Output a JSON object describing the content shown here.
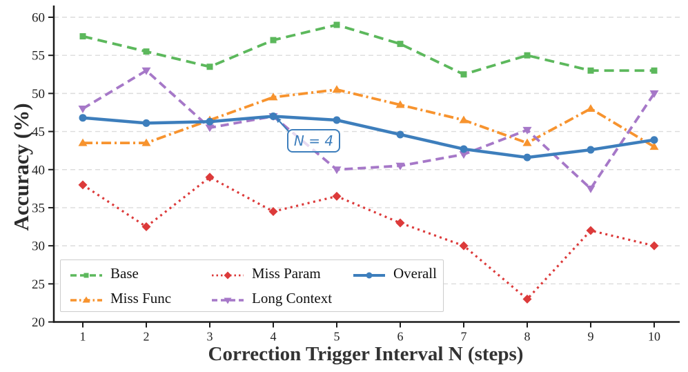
{
  "chart_data": {
    "type": "line",
    "title": "",
    "xlabel": "Correction Trigger Interval N (steps)",
    "ylabel": "Accuracy (%)",
    "x": [
      1,
      2,
      3,
      4,
      5,
      6,
      7,
      8,
      9,
      10
    ],
    "yticks": [
      20,
      25,
      30,
      35,
      40,
      45,
      50,
      55,
      60
    ],
    "ylim": [
      20,
      61.5
    ],
    "grid": "horizontal-dashed",
    "legend_position": "lower-left",
    "series": [
      {
        "name": "Base",
        "color": "#5cb85c",
        "dash": "dashed",
        "marker": "square",
        "values": [
          57.5,
          55.5,
          53.5,
          57.0,
          59.0,
          56.5,
          52.5,
          55.0,
          53.0,
          53.0
        ]
      },
      {
        "name": "Miss Func",
        "color": "#f7932e",
        "dash": "dashdot",
        "marker": "triangle-up",
        "values": [
          43.5,
          43.5,
          46.5,
          49.5,
          50.5,
          48.5,
          46.5,
          43.5,
          48.0,
          43.0
        ]
      },
      {
        "name": "Miss Param",
        "color": "#dc3a3a",
        "dash": "dotted",
        "marker": "diamond",
        "values": [
          38.0,
          32.5,
          39.0,
          34.5,
          36.5,
          33.0,
          30.0,
          23.0,
          32.0,
          30.0
        ]
      },
      {
        "name": "Long Context",
        "color": "#a678c8",
        "dash": "dashed2",
        "marker": "triangle-down",
        "values": [
          48.0,
          53.0,
          45.5,
          47.0,
          40.0,
          40.5,
          42.0,
          45.2,
          37.5,
          50.0
        ]
      },
      {
        "name": "Overall",
        "color": "#3d7ebc",
        "dash": "solid",
        "marker": "circle",
        "values": [
          46.8,
          46.1,
          46.3,
          47.0,
          46.5,
          44.6,
          42.7,
          41.6,
          42.6,
          43.9
        ]
      }
    ],
    "annotation": {
      "label": "N = 4",
      "target_x": 4,
      "target_y": 47
    },
    "colors": {
      "spine": "#1c1c1c",
      "grid": "#dcdcdc",
      "tick_label": "#222222",
      "accent_blue": "#3d7ebc"
    }
  }
}
